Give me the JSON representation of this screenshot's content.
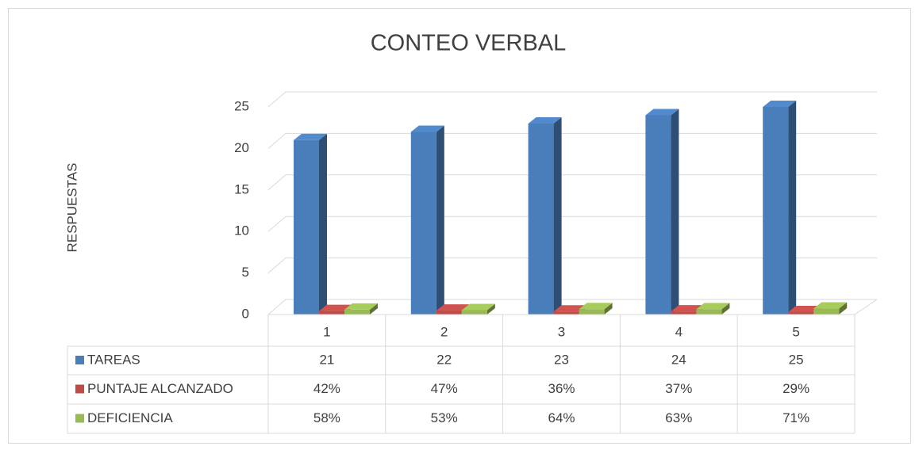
{
  "chart_data": {
    "type": "bar3d",
    "title": "CONTEO VERBAL",
    "y_label": "RESPUESTAS",
    "categories": [
      "1",
      "2",
      "3",
      "4",
      "5"
    ],
    "series": [
      {
        "name": "TAREAS",
        "color": "#4a7ebb",
        "values": [
          21,
          22,
          23,
          24,
          25
        ]
      },
      {
        "name": "PUNTAJE ALCANZADO",
        "color": "#be4b48",
        "values": [
          0.42,
          0.47,
          0.36,
          0.37,
          0.29
        ],
        "value_labels": [
          "42%",
          "47%",
          "36%",
          "37%",
          "29%"
        ]
      },
      {
        "name": "DEFICIENCIA",
        "color": "#98b954",
        "values": [
          0.58,
          0.53,
          0.64,
          0.63,
          0.71
        ],
        "value_labels": [
          "58%",
          "53%",
          "64%",
          "63%",
          "71%"
        ]
      }
    ],
    "ylim": [
      0,
      25
    ],
    "yticks": [
      0,
      5,
      10,
      15,
      20,
      25
    ],
    "grid": true
  }
}
